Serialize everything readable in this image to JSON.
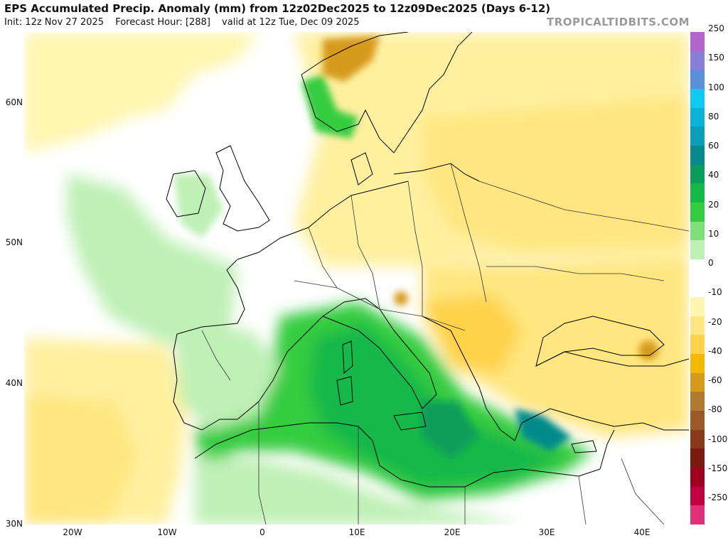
{
  "header": {
    "title": "EPS Accumulated Precip. Anomaly (mm) from 12z02Dec2025 to 12z09Dec2025 (Days 6-12)",
    "init": "Init: 12z Nov 27 2025",
    "forecast_hour": "Forecast Hour: [288]",
    "valid": "valid at 12z Tue, Dec 09 2025",
    "brand": "TROPICALTIDBITS.COM"
  },
  "map": {
    "lat_labels": [
      "60N",
      "50N",
      "40N",
      "30N"
    ],
    "lon_labels": [
      "20W",
      "10W",
      "0",
      "10E",
      "20E",
      "30E",
      "40E"
    ],
    "lat_values": [
      60,
      50,
      40,
      30
    ],
    "lon_values": [
      -20,
      -10,
      0,
      10,
      20,
      30,
      40
    ]
  },
  "colorbar": {
    "labels": [
      "250",
      "150",
      "100",
      "80",
      "60",
      "40",
      "20",
      "10",
      "0",
      "-10",
      "-20",
      "-40",
      "-60",
      "-80",
      "-100",
      "-150",
      "-250"
    ],
    "colors": [
      "#b266cc",
      "#8a7fd6",
      "#5b8fdb",
      "#10c9f0",
      "#0bb3d6",
      "#099fb8",
      "#068a8a",
      "#0a9e5a",
      "#17b84a",
      "#35cc40",
      "#7ee07a",
      "#bff0b6",
      "#ffffff",
      "#ffffff",
      "#fff6b0",
      "#ffe680",
      "#ffd24a",
      "#f5b800",
      "#d69a1a",
      "#b07a30",
      "#9a5a28",
      "#8a3a1a",
      "#7a1a10",
      "#a00020",
      "#c00040",
      "#e0307a"
    ]
  }
}
